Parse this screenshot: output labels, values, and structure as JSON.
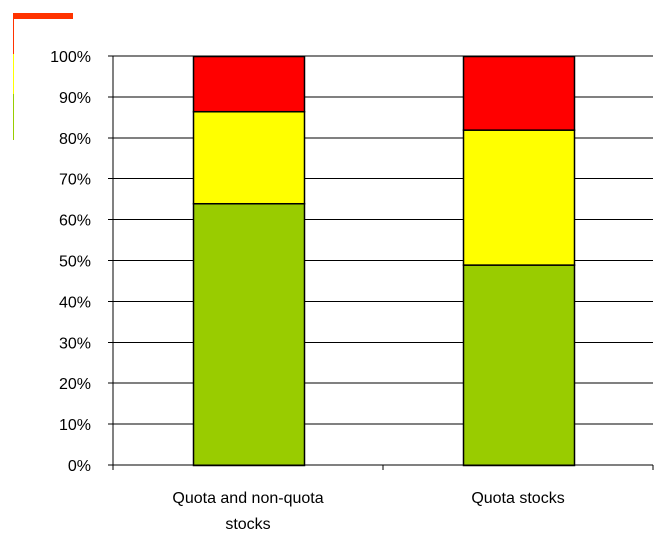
{
  "chart_data": {
    "type": "bar",
    "stacked": true,
    "categories": [
      [
        "Quota and non-quota",
        "stocks"
      ],
      [
        "Quota stocks"
      ]
    ],
    "series": [
      {
        "color": "#99cc00",
        "values": [
          64,
          49
        ]
      },
      {
        "color": "#ffff00",
        "values": [
          22.5,
          33
        ]
      },
      {
        "color": "#ff0000",
        "values": [
          13.5,
          18
        ]
      }
    ],
    "ylim": [
      0,
      100
    ],
    "y_ticks": [
      0,
      10,
      20,
      30,
      40,
      50,
      60,
      70,
      80,
      90,
      100
    ],
    "y_tick_labels": [
      "0%",
      "10%",
      "20%",
      "30%",
      "40%",
      "50%",
      "60%",
      "70%",
      "80%",
      "90%",
      "100%"
    ],
    "grid": true,
    "legend": "none",
    "accent_colors": [
      "#ff3300",
      "#ffff00",
      "#99cc00"
    ]
  }
}
